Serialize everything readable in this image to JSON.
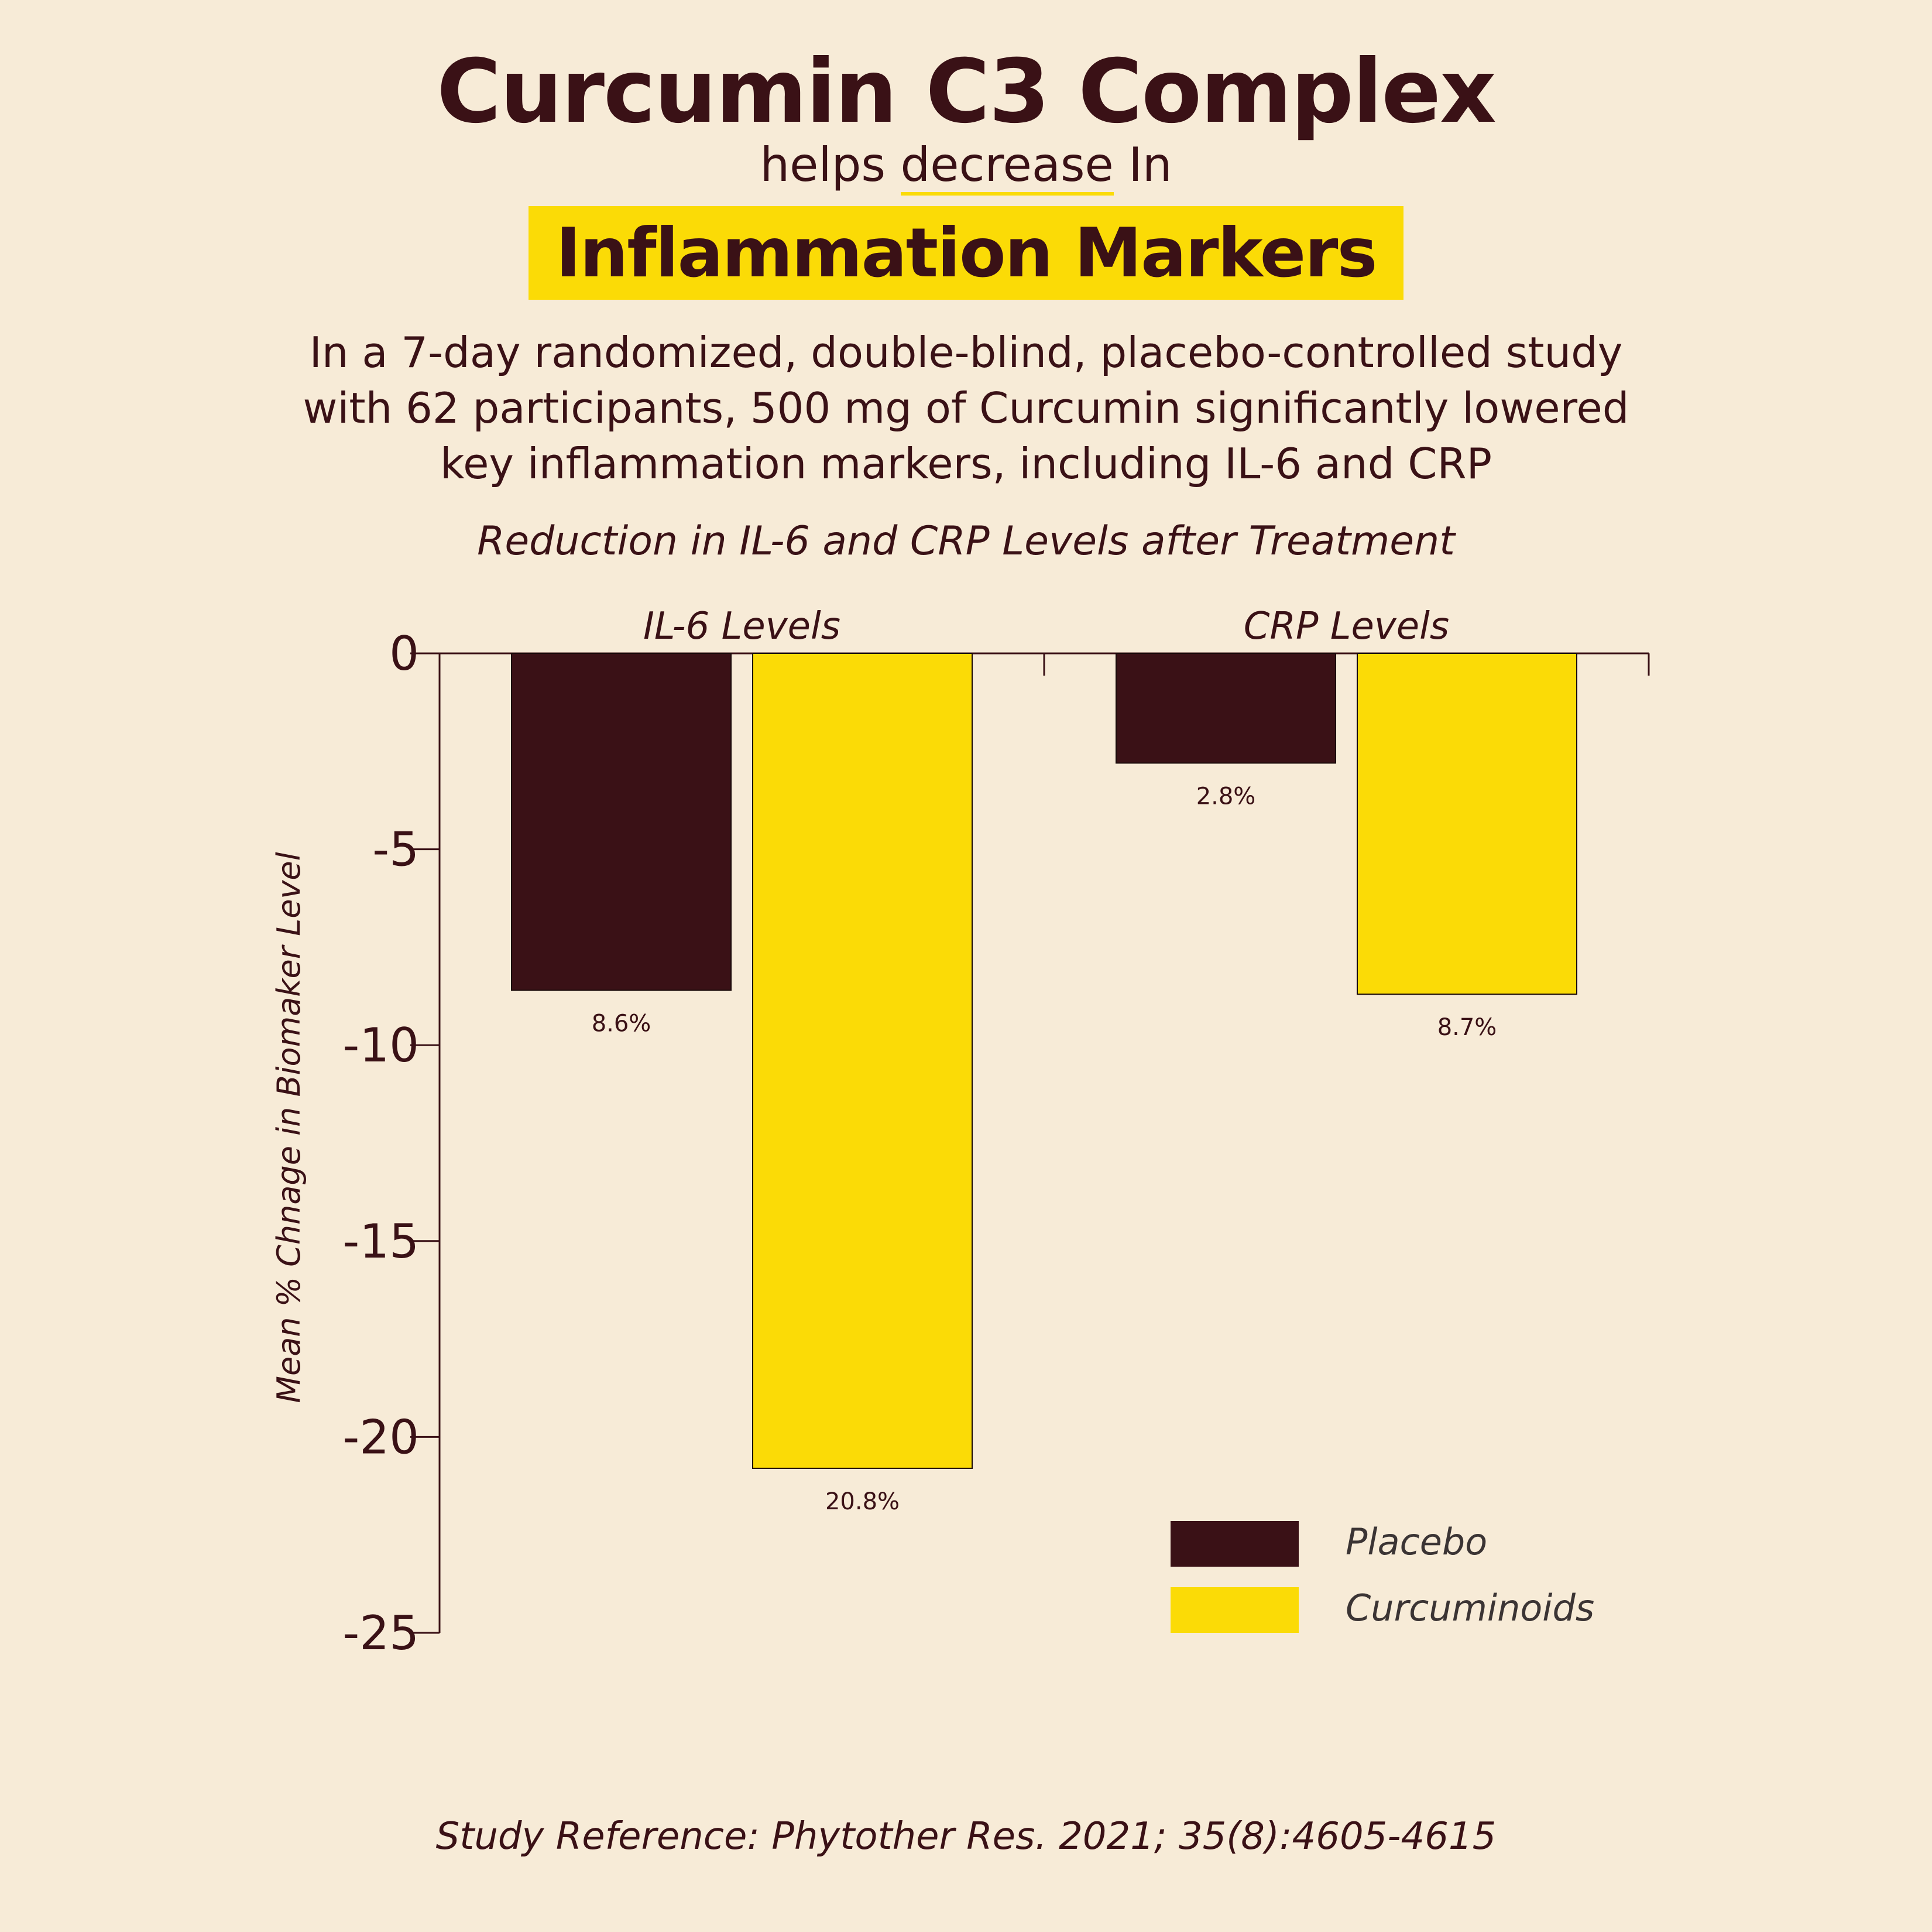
{
  "header": {
    "title": "Curcumin C3 Complex",
    "subtitle_pre": "helps",
    "subtitle_underlined": "decrease",
    "subtitle_post": "In",
    "highlight": "Inflammation Markers",
    "description_lines": [
      "In a 7-day randomized, double-blind, placebo-controlled study",
      "with 62 participants, 500 mg of Curcumin significantly lowered",
      "key inflammation markers, including IL-6 and CRP"
    ]
  },
  "colors": {
    "background": "#f7ebd7",
    "placebo": "#3a1116",
    "curcuminoids": "#fbdb06",
    "text": "#3a1116"
  },
  "chart_data": {
    "type": "bar",
    "title": "Reduction in IL-6 and CRP Levels after Treatment",
    "categories": [
      "IL-6 Levels",
      "CRP Levels"
    ],
    "series": [
      {
        "name": "Placebo",
        "values": [
          -8.6,
          -2.8
        ],
        "labels": [
          "8.6%",
          "2.8%"
        ]
      },
      {
        "name": "Curcuminoids",
        "values": [
          -20.8,
          -8.7
        ],
        "labels": [
          "20.8%",
          "8.7%"
        ]
      }
    ],
    "ylabel": "Mean % Chnage in Biomaker Level",
    "xlabel": "",
    "ylim": [
      -25,
      0
    ],
    "yticks": [
      "0",
      "-5",
      "-10",
      "-15",
      "-20",
      "-25"
    ],
    "grid": false,
    "legend_position": "bottom-right"
  },
  "footer": {
    "reference": "Study Reference: Phytother Res. 2021; 35(8):4605-4615"
  }
}
